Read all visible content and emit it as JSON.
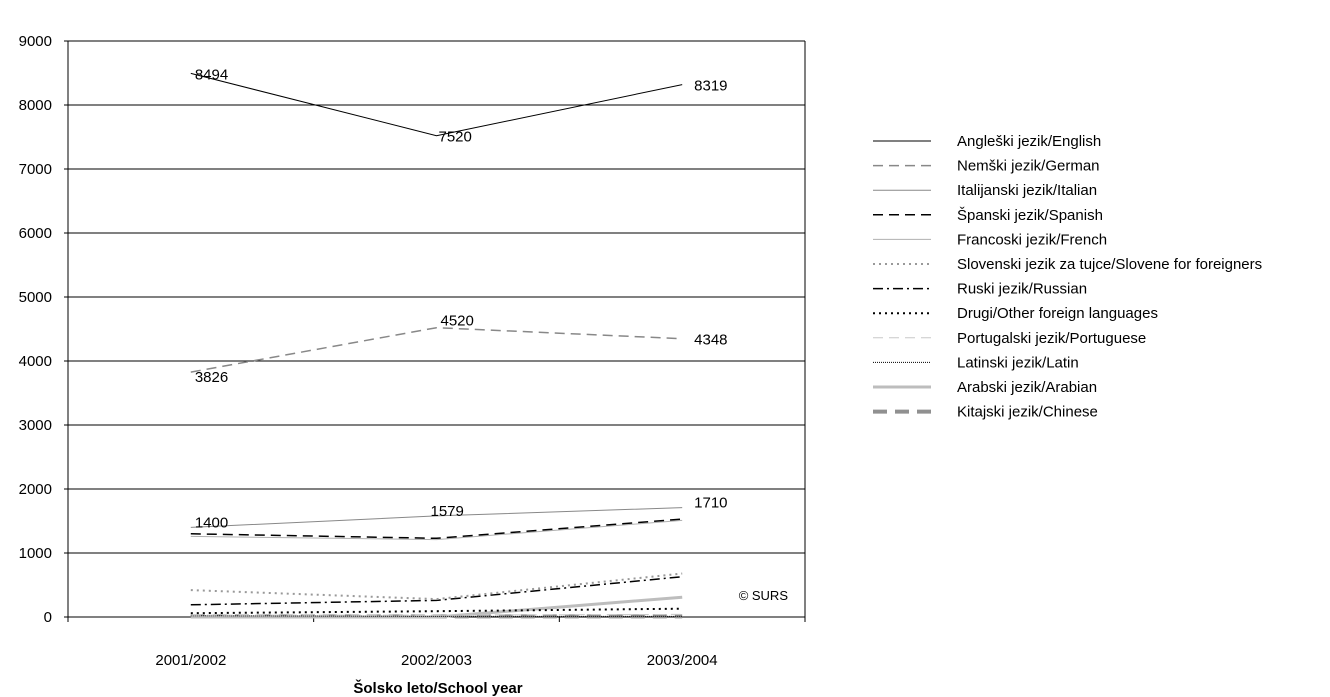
{
  "chart_data": {
    "type": "line",
    "title": "",
    "xlabel": "Šolsko leto/School year",
    "ylabel": "",
    "categories": [
      "2001/2002",
      "2002/2003",
      "2003/2004"
    ],
    "ylim": [
      0,
      9000
    ],
    "yticks": [
      0,
      1000,
      2000,
      3000,
      4000,
      5000,
      6000,
      7000,
      8000,
      9000
    ],
    "grid": true,
    "legend_position": "right",
    "credit": "© SURS",
    "series": [
      {
        "name": "Angleški jezik/English",
        "values": [
          8494,
          7520,
          8319
        ],
        "labels": [
          "8494",
          "7520",
          "8319"
        ],
        "color": "#000000",
        "dash": "",
        "width": 1
      },
      {
        "name": "Nemški jezik/German",
        "values": [
          3826,
          4520,
          4348
        ],
        "labels": [
          "3826",
          "4520",
          "4348"
        ],
        "color": "#888888",
        "dash": "10,6",
        "width": 1.5
      },
      {
        "name": "Italijanski jezik/Italian",
        "values": [
          1400,
          1579,
          1710
        ],
        "labels": [
          "1400",
          "1579",
          "1710"
        ],
        "color": "#888888",
        "dash": "",
        "width": 1
      },
      {
        "name": "Španski jezik/Spanish",
        "values": [
          1300,
          1230,
          1530
        ],
        "labels": [],
        "color": "#000000",
        "dash": "10,6",
        "width": 1.5
      },
      {
        "name": "Francoski jezik/French",
        "values": [
          1260,
          1210,
          1510
        ],
        "labels": [],
        "color": "#b0b0b0",
        "dash": "",
        "width": 1
      },
      {
        "name": "Slovenski jezik za tujce/Slovene for foreigners",
        "values": [
          420,
          280,
          680
        ],
        "labels": [],
        "color": "#999999",
        "dash": "2,4",
        "width": 2
      },
      {
        "name": "Ruski jezik/Russian",
        "values": [
          190,
          260,
          630
        ],
        "labels": [],
        "color": "#000000",
        "dash": "10,4,2,4",
        "width": 1.5
      },
      {
        "name": "Drugi/Other foreign languages",
        "values": [
          60,
          90,
          130
        ],
        "labels": [],
        "color": "#000000",
        "dash": "2,4",
        "width": 2
      },
      {
        "name": "Portugalski jezik/Portuguese",
        "values": [
          30,
          30,
          40
        ],
        "labels": [],
        "color": "#c8c8c8",
        "dash": "10,6",
        "width": 1
      },
      {
        "name": "Latinski jezik/Latin",
        "values": [
          20,
          10,
          10
        ],
        "labels": [],
        "color": "#000000",
        "dash": "1,1",
        "width": 1
      },
      {
        "name": "Arabski jezik/Arabian",
        "values": [
          0,
          0,
          310
        ],
        "labels": [],
        "color": "#bdbdbd",
        "dash": "",
        "width": 3
      },
      {
        "name": "Kitajski jezik/Chinese",
        "values": [
          10,
          10,
          10
        ],
        "labels": [],
        "color": "#909090",
        "dash": "14,8",
        "width": 4
      }
    ]
  }
}
